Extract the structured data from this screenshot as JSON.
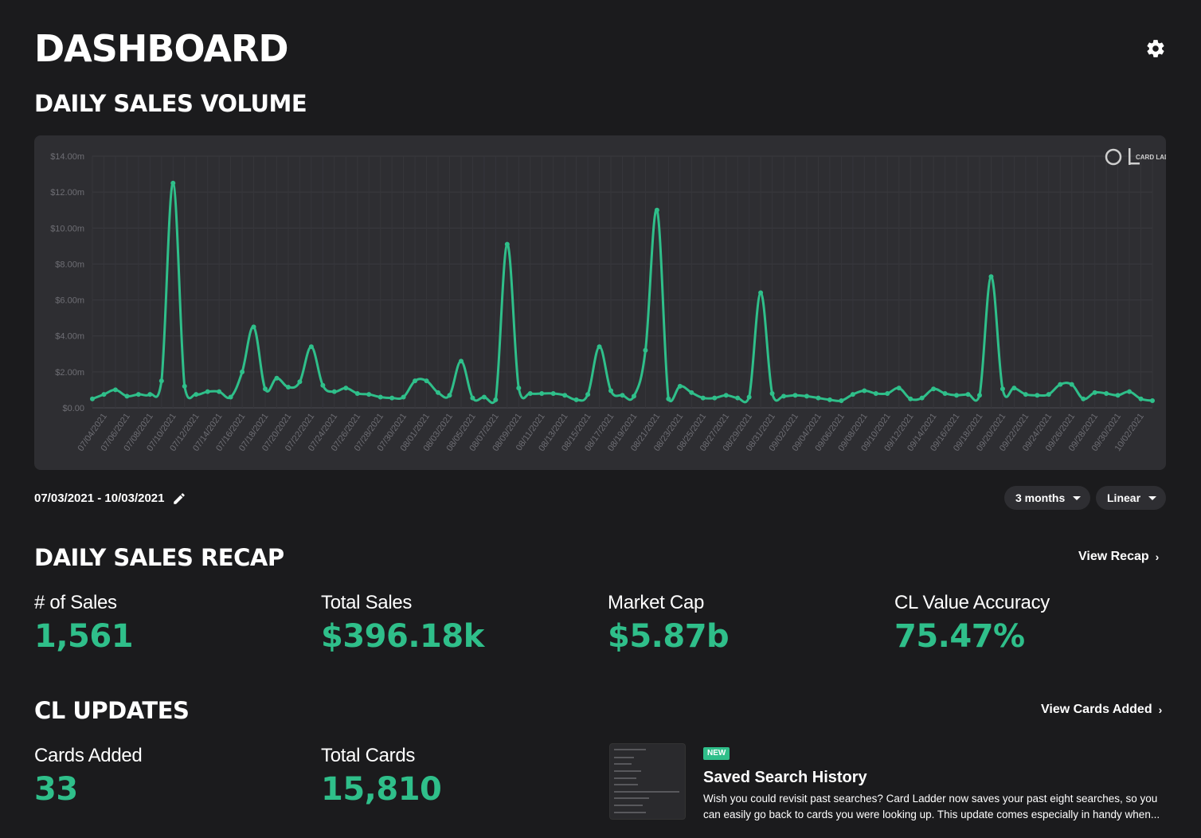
{
  "header": {
    "title": "DASHBOARD",
    "settings_icon": "gear-icon"
  },
  "sales_volume": {
    "title": "DAILY SALES VOLUME",
    "watermark": "CARD LADDER",
    "date_range": "07/03/2021 - 10/03/2021",
    "period_label": "3 months",
    "scale_label": "Linear"
  },
  "chart_data": {
    "type": "line",
    "title": "DAILY SALES VOLUME",
    "xlabel": "",
    "ylabel": "",
    "ylim": [
      0,
      14
    ],
    "y_ticks": [
      "$0.00",
      "$2.00m",
      "$4.00m",
      "$6.00m",
      "$8.00m",
      "$10.00m",
      "$12.00m",
      "$14.00m"
    ],
    "x_tick_labels": [
      "07/04/2021",
      "07/06/2021",
      "07/08/2021",
      "07/10/2021",
      "07/12/2021",
      "07/14/2021",
      "07/16/2021",
      "07/18/2021",
      "07/20/2021",
      "07/22/2021",
      "07/24/2021",
      "07/26/2021",
      "07/28/2021",
      "07/30/2021",
      "08/01/2021",
      "08/03/2021",
      "08/05/2021",
      "08/07/2021",
      "08/09/2021",
      "08/11/2021",
      "08/13/2021",
      "08/15/2021",
      "08/17/2021",
      "08/19/2021",
      "08/21/2021",
      "08/23/2021",
      "08/25/2021",
      "08/27/2021",
      "08/29/2021",
      "08/31/2021",
      "09/02/2021",
      "09/04/2021",
      "09/06/2021",
      "09/08/2021",
      "09/10/2021",
      "09/12/2021",
      "09/14/2021",
      "09/16/2021",
      "09/18/2021",
      "09/20/2021",
      "09/22/2021",
      "09/24/2021",
      "09/26/2021",
      "09/28/2021",
      "09/30/2021",
      "10/02/2021"
    ],
    "series": [
      {
        "name": "Daily Sales Volume ($m)",
        "color": "#2fbf8a",
        "values": [
          0.5,
          0.75,
          1.0,
          0.65,
          0.75,
          0.75,
          1.5,
          12.5,
          1.2,
          0.75,
          0.9,
          0.9,
          0.6,
          2.0,
          4.5,
          1.05,
          1.65,
          1.15,
          1.45,
          3.4,
          1.25,
          0.9,
          1.1,
          0.8,
          0.75,
          0.6,
          0.55,
          0.6,
          1.5,
          1.5,
          0.85,
          0.7,
          2.6,
          0.55,
          0.6,
          0.45,
          9.1,
          1.1,
          0.8,
          0.8,
          0.8,
          0.7,
          0.45,
          0.75,
          3.4,
          0.95,
          0.7,
          0.65,
          3.2,
          11.0,
          0.5,
          1.2,
          0.85,
          0.55,
          0.55,
          0.7,
          0.55,
          0.6,
          6.4,
          0.8,
          0.65,
          0.7,
          0.65,
          0.55,
          0.45,
          0.4,
          0.75,
          0.95,
          0.8,
          0.8,
          1.1,
          0.5,
          0.55,
          1.05,
          0.8,
          0.7,
          0.75,
          0.7,
          7.3,
          1.05,
          1.1,
          0.75,
          0.7,
          0.75,
          1.3,
          1.3,
          0.5,
          0.85,
          0.8,
          0.7,
          0.9,
          0.5,
          0.4
        ]
      }
    ]
  },
  "recap": {
    "title": "DAILY SALES RECAP",
    "view_link": "View Recap",
    "stats": [
      {
        "label": "# of Sales",
        "value": "1,561"
      },
      {
        "label": "Total Sales",
        "value": "$396.18k"
      },
      {
        "label": "Market Cap",
        "value": "$5.87b"
      },
      {
        "label": "CL Value Accuracy",
        "value": "75.47%"
      }
    ]
  },
  "updates": {
    "title": "CL UPDATES",
    "view_link": "View Cards Added",
    "stats": [
      {
        "label": "Cards Added",
        "value": "33"
      },
      {
        "label": "Total Cards",
        "value": "15,810"
      }
    ],
    "news": {
      "badge": "NEW",
      "title": "Saved Search History",
      "body": "Wish you could revisit past searches? Card Ladder now saves your past eight searches, so you can easily go back to cards you were looking up. This update comes especially in handy when..."
    }
  },
  "colors": {
    "accent": "#2fbf8a",
    "background": "#1b1b1d",
    "panel": "#2e2e32"
  }
}
